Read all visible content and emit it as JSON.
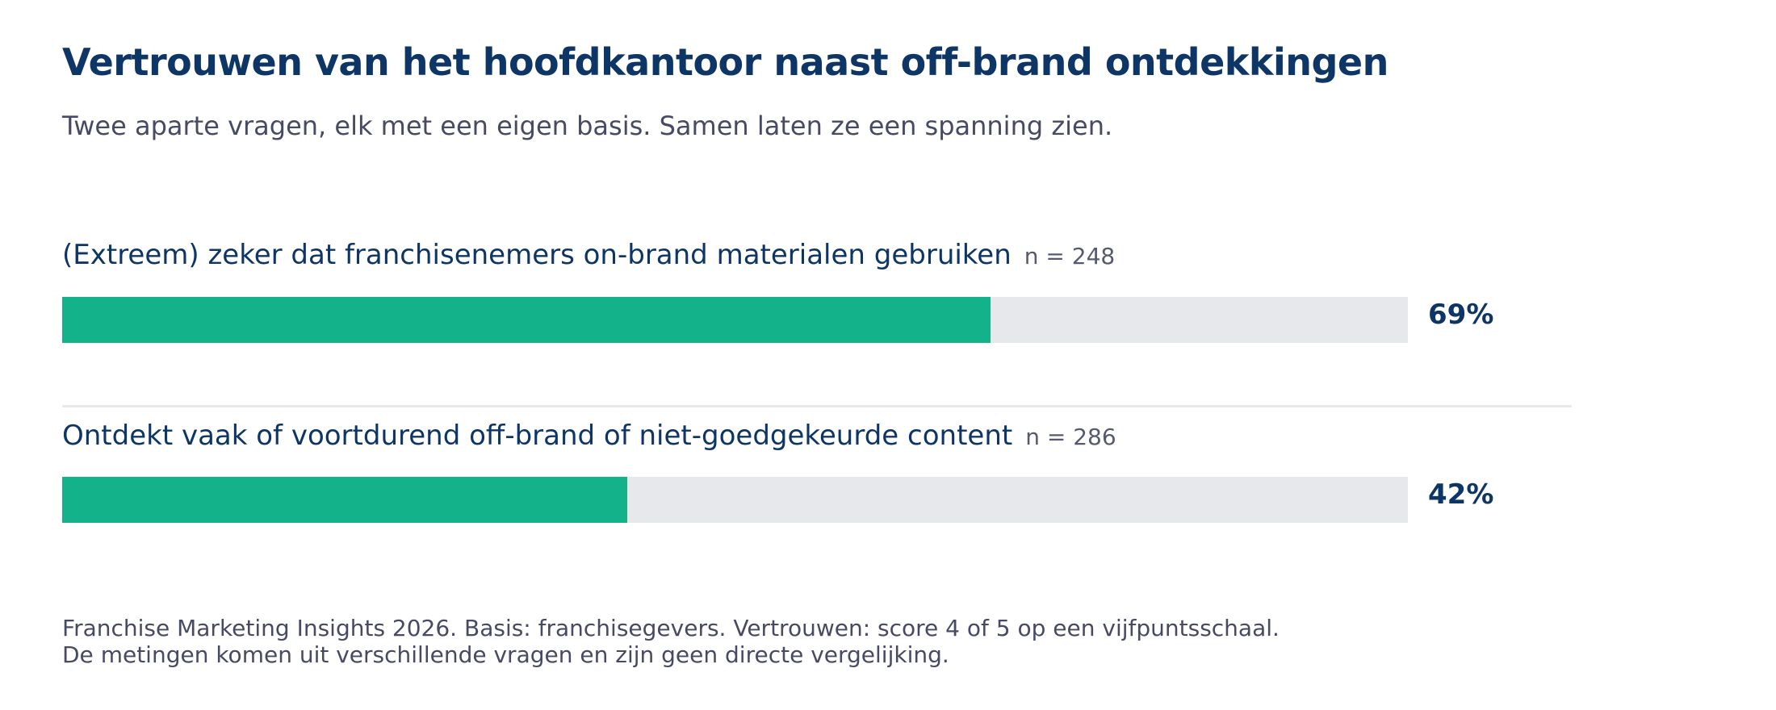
{
  "chart_data": {
    "type": "bar",
    "orientation": "horizontal",
    "title": "Vertrouwen van het hoofdkantoor naast off-brand ontdekkingen",
    "subtitle": "Twee aparte vragen, elk met een eigen basis. Samen laten ze een spanning zien.",
    "xlim": [
      0,
      100
    ],
    "unit": "%",
    "bars": [
      {
        "label": "(Extreem) zeker dat franchisenemers on-brand materialen gebruiken",
        "n_label": "n = 248",
        "value": 69,
        "value_label": "69%"
      },
      {
        "label": "Ontdekt vaak of voortdurend off-brand of niet-goedgekeurde content",
        "n_label": "n = 286",
        "value": 42,
        "value_label": "42%"
      }
    ],
    "colors": {
      "fill": "#14b28b",
      "track": "#e7e8eb",
      "title": "#0d3566",
      "text": "#474a63"
    },
    "notes": [
      "Franchise Marketing Insights 2026. Basis: franchisegevers. Vertrouwen: score 4 of 5 op een vijfpuntsschaal.",
      "De metingen komen uit verschillende vragen en zijn geen directe vergelijking."
    ]
  }
}
